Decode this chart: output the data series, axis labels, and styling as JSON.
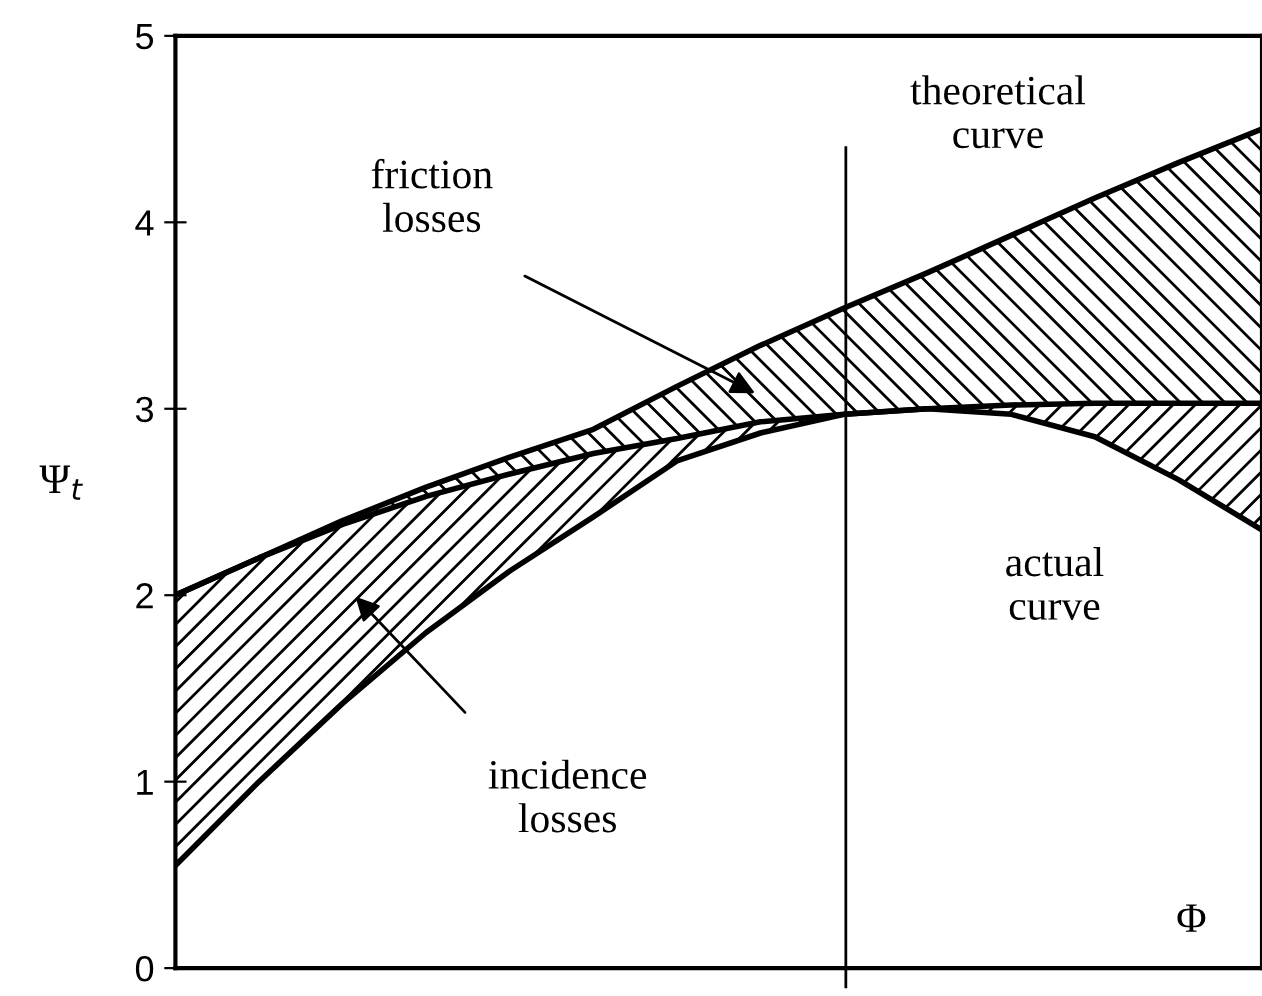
{
  "chart_data": {
    "type": "line",
    "xlabel": "Φ",
    "ylabel": "Ψ$_{t}$",
    "categories": [
      null,
      null,
      null,
      null,
      null,
      null,
      null,
      null,
      null,
      null,
      null,
      null,
      null,
      null
    ],
    "series": [
      {
        "color": "#000000",
        "values": [
          2.0,
          2.2,
          2.4,
          2.58,
          2.74,
          2.89,
          3.12,
          3.34,
          3.54,
          3.73,
          3.93,
          4.13,
          4.32,
          4.5
        ]
      },
      {
        "color": "#000000",
        "values": [
          2.0,
          2.2,
          2.38,
          2.53,
          2.65,
          2.76,
          2.84,
          2.93,
          2.97,
          3.0,
          3.02,
          3.03,
          3.03,
          3.03
        ]
      },
      {
        "color": "#000000",
        "values": [
          0.55,
          1.0,
          1.42,
          1.8,
          2.13,
          2.42,
          2.72,
          2.87,
          2.97,
          3.0,
          2.97,
          2.85,
          2.62,
          2.35
        ]
      }
    ],
    "ylim": [
      0,
      5
    ],
    "yticks": [
      0,
      1,
      2,
      3,
      4,
      5
    ],
    "annotations": [
      "theoretical curve",
      "friction losses",
      "actual curve",
      "incidence losses"
    ],
    "grid": false,
    "legend": false,
    "marker": "none",
    "line_style": "solid"
  }
}
